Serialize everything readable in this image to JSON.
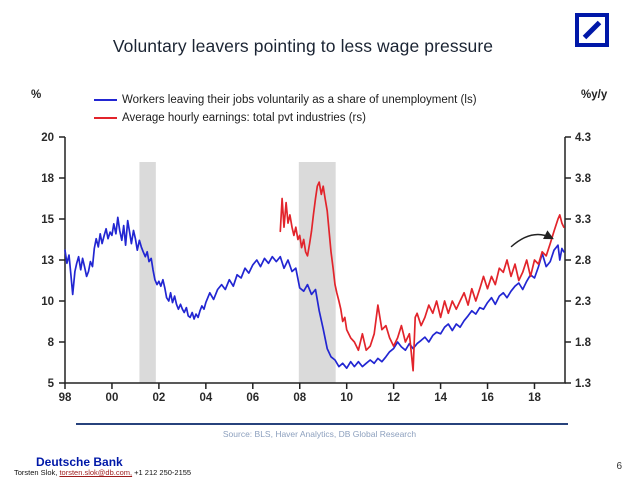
{
  "header": {
    "title": "Voluntary leavers pointing to less wage pressure",
    "logo_name": "deutsche-bank-logo",
    "logo_color": "#0018a8"
  },
  "chart_data": {
    "type": "line",
    "title": "Voluntary leavers pointing to less wage pressure",
    "grid": false,
    "legend_position": "top",
    "left_axis": {
      "unit_label": "%",
      "tick_labels": [
        "20",
        "18",
        "15",
        "13",
        "10",
        "8",
        "5"
      ],
      "tick_values": [
        20,
        17.5,
        15,
        12.5,
        10,
        7.5,
        5
      ],
      "range": [
        5,
        20
      ]
    },
    "right_axis": {
      "unit_label": "%y/y",
      "tick_labels": [
        "4.3",
        "3.8",
        "3.3",
        "2.8",
        "2.3",
        "1.8",
        "1.3"
      ],
      "tick_values": [
        4.3,
        3.8,
        3.3,
        2.8,
        2.3,
        1.8,
        1.3
      ],
      "range": [
        1.3,
        4.3
      ]
    },
    "x_axis": {
      "tick_labels": [
        "98",
        "00",
        "02",
        "04",
        "06",
        "08",
        "10",
        "12",
        "14",
        "16",
        "18"
      ],
      "tick_values": [
        1998,
        2000,
        2002,
        2004,
        2006,
        2008,
        2010,
        2012,
        2014,
        2016,
        2018
      ],
      "range": [
        1998,
        2019.3
      ]
    },
    "recession_bands": [
      {
        "start": 2001.17,
        "end": 2001.87
      },
      {
        "start": 2007.96,
        "end": 2009.53
      }
    ],
    "band_color": "#dadada",
    "axis_color": "#222222",
    "series": [
      {
        "name": "Workers leaving their jobs voluntarily as a share of unemployment (ls)",
        "axis": "left",
        "color": "#2226d2",
        "points": [
          [
            1998.0,
            13.1
          ],
          [
            1998.08,
            12.3
          ],
          [
            1998.17,
            12.8
          ],
          [
            1998.25,
            11.6
          ],
          [
            1998.33,
            10.4
          ],
          [
            1998.42,
            11.8
          ],
          [
            1998.5,
            12.3
          ],
          [
            1998.58,
            12.7
          ],
          [
            1998.67,
            11.9
          ],
          [
            1998.75,
            12.6
          ],
          [
            1998.83,
            12.1
          ],
          [
            1998.92,
            11.5
          ],
          [
            1999.0,
            11.8
          ],
          [
            1999.08,
            12.4
          ],
          [
            1999.17,
            12.1
          ],
          [
            1999.25,
            13.2
          ],
          [
            1999.33,
            13.8
          ],
          [
            1999.42,
            13.3
          ],
          [
            1999.5,
            14.1
          ],
          [
            1999.58,
            13.5
          ],
          [
            1999.67,
            14.0
          ],
          [
            1999.75,
            14.4
          ],
          [
            1999.83,
            13.8
          ],
          [
            1999.92,
            14.2
          ],
          [
            2000.0,
            14.0
          ],
          [
            2000.08,
            14.7
          ],
          [
            2000.17,
            14.1
          ],
          [
            2000.25,
            15.1
          ],
          [
            2000.33,
            14.3
          ],
          [
            2000.42,
            13.7
          ],
          [
            2000.5,
            14.6
          ],
          [
            2000.58,
            13.4
          ],
          [
            2000.67,
            14.9
          ],
          [
            2000.75,
            14.2
          ],
          [
            2000.83,
            13.5
          ],
          [
            2000.92,
            14.3
          ],
          [
            2001.0,
            13.8
          ],
          [
            2001.08,
            13.1
          ],
          [
            2001.17,
            13.7
          ],
          [
            2001.25,
            13.3
          ],
          [
            2001.33,
            13.0
          ],
          [
            2001.42,
            12.7
          ],
          [
            2001.5,
            13.0
          ],
          [
            2001.58,
            12.4
          ],
          [
            2001.67,
            12.6
          ],
          [
            2001.75,
            11.9
          ],
          [
            2001.83,
            11.3
          ],
          [
            2001.92,
            11.0
          ],
          [
            2002.0,
            11.2
          ],
          [
            2002.08,
            10.9
          ],
          [
            2002.17,
            11.3
          ],
          [
            2002.25,
            10.8
          ],
          [
            2002.33,
            10.2
          ],
          [
            2002.42,
            10.0
          ],
          [
            2002.5,
            10.5
          ],
          [
            2002.58,
            9.9
          ],
          [
            2002.67,
            10.3
          ],
          [
            2002.75,
            9.8
          ],
          [
            2002.83,
            9.5
          ],
          [
            2002.92,
            9.8
          ],
          [
            2003.0,
            9.5
          ],
          [
            2003.08,
            9.3
          ],
          [
            2003.17,
            9.6
          ],
          [
            2003.25,
            9.1
          ],
          [
            2003.33,
            9.0
          ],
          [
            2003.42,
            9.3
          ],
          [
            2003.5,
            8.9
          ],
          [
            2003.58,
            9.2
          ],
          [
            2003.67,
            9.0
          ],
          [
            2003.75,
            9.4
          ],
          [
            2003.83,
            9.7
          ],
          [
            2003.92,
            9.5
          ],
          [
            2004.0,
            9.9
          ],
          [
            2004.17,
            10.5
          ],
          [
            2004.33,
            10.1
          ],
          [
            2004.5,
            10.7
          ],
          [
            2004.67,
            11.0
          ],
          [
            2004.83,
            10.7
          ],
          [
            2005.0,
            11.3
          ],
          [
            2005.17,
            10.9
          ],
          [
            2005.33,
            11.6
          ],
          [
            2005.5,
            11.4
          ],
          [
            2005.67,
            12.0
          ],
          [
            2005.83,
            11.7
          ],
          [
            2006.0,
            12.2
          ],
          [
            2006.17,
            12.5
          ],
          [
            2006.33,
            12.1
          ],
          [
            2006.5,
            12.6
          ],
          [
            2006.67,
            12.3
          ],
          [
            2006.83,
            12.7
          ],
          [
            2007.0,
            12.4
          ],
          [
            2007.17,
            12.7
          ],
          [
            2007.33,
            12.0
          ],
          [
            2007.5,
            12.5
          ],
          [
            2007.67,
            11.8
          ],
          [
            2007.83,
            12.0
          ],
          [
            2008.0,
            10.8
          ],
          [
            2008.17,
            10.6
          ],
          [
            2008.33,
            11.0
          ],
          [
            2008.5,
            10.4
          ],
          [
            2008.67,
            10.7
          ],
          [
            2008.83,
            9.4
          ],
          [
            2009.0,
            8.3
          ],
          [
            2009.17,
            7.1
          ],
          [
            2009.33,
            6.6
          ],
          [
            2009.5,
            6.4
          ],
          [
            2009.67,
            6.0
          ],
          [
            2009.83,
            6.2
          ],
          [
            2010.0,
            5.9
          ],
          [
            2010.17,
            6.3
          ],
          [
            2010.33,
            6.0
          ],
          [
            2010.5,
            6.3
          ],
          [
            2010.67,
            6.0
          ],
          [
            2010.83,
            6.2
          ],
          [
            2011.0,
            6.4
          ],
          [
            2011.17,
            6.2
          ],
          [
            2011.33,
            6.5
          ],
          [
            2011.5,
            6.3
          ],
          [
            2011.67,
            6.6
          ],
          [
            2011.83,
            6.9
          ],
          [
            2012.0,
            7.1
          ],
          [
            2012.17,
            7.5
          ],
          [
            2012.33,
            7.2
          ],
          [
            2012.5,
            7.0
          ],
          [
            2012.67,
            7.4
          ],
          [
            2012.83,
            7.1
          ],
          [
            2013.0,
            7.4
          ],
          [
            2013.17,
            7.6
          ],
          [
            2013.33,
            7.8
          ],
          [
            2013.5,
            7.5
          ],
          [
            2013.67,
            7.9
          ],
          [
            2013.83,
            8.1
          ],
          [
            2014.0,
            8.0
          ],
          [
            2014.17,
            8.4
          ],
          [
            2014.33,
            8.6
          ],
          [
            2014.5,
            8.2
          ],
          [
            2014.67,
            8.6
          ],
          [
            2014.83,
            8.4
          ],
          [
            2015.0,
            8.8
          ],
          [
            2015.17,
            9.1
          ],
          [
            2015.33,
            9.4
          ],
          [
            2015.5,
            9.2
          ],
          [
            2015.67,
            9.6
          ],
          [
            2015.83,
            9.5
          ],
          [
            2016.0,
            9.9
          ],
          [
            2016.17,
            10.2
          ],
          [
            2016.33,
            9.8
          ],
          [
            2016.5,
            10.3
          ],
          [
            2016.67,
            10.5
          ],
          [
            2016.83,
            10.2
          ],
          [
            2017.0,
            10.6
          ],
          [
            2017.17,
            10.9
          ],
          [
            2017.33,
            11.1
          ],
          [
            2017.5,
            10.7
          ],
          [
            2017.67,
            11.2
          ],
          [
            2017.83,
            11.6
          ],
          [
            2018.0,
            11.4
          ],
          [
            2018.17,
            12.1
          ],
          [
            2018.33,
            12.9
          ],
          [
            2018.5,
            12.1
          ],
          [
            2018.67,
            12.4
          ],
          [
            2018.83,
            13.1
          ],
          [
            2019.0,
            13.4
          ],
          [
            2019.08,
            12.5
          ],
          [
            2019.17,
            13.2
          ],
          [
            2019.25,
            13.0
          ]
        ]
      },
      {
        "name": "Average hourly earnings: total pvt industries (rs)",
        "axis": "right",
        "color": "#e2242b",
        "points": [
          [
            2007.17,
            3.15
          ],
          [
            2007.25,
            3.55
          ],
          [
            2007.33,
            3.2
          ],
          [
            2007.42,
            3.5
          ],
          [
            2007.5,
            3.25
          ],
          [
            2007.58,
            3.35
          ],
          [
            2007.67,
            3.2
          ],
          [
            2007.75,
            3.1
          ],
          [
            2007.83,
            3.2
          ],
          [
            2007.92,
            3.05
          ],
          [
            2008.0,
            3.1
          ],
          [
            2008.08,
            2.95
          ],
          [
            2008.17,
            3.05
          ],
          [
            2008.25,
            2.9
          ],
          [
            2008.33,
            2.85
          ],
          [
            2008.42,
            3.0
          ],
          [
            2008.5,
            3.15
          ],
          [
            2008.58,
            3.35
          ],
          [
            2008.67,
            3.55
          ],
          [
            2008.75,
            3.7
          ],
          [
            2008.83,
            3.75
          ],
          [
            2008.92,
            3.6
          ],
          [
            2009.0,
            3.7
          ],
          [
            2009.08,
            3.55
          ],
          [
            2009.17,
            3.4
          ],
          [
            2009.25,
            3.15
          ],
          [
            2009.33,
            2.9
          ],
          [
            2009.42,
            2.7
          ],
          [
            2009.5,
            2.5
          ],
          [
            2009.58,
            2.4
          ],
          [
            2009.67,
            2.3
          ],
          [
            2009.75,
            2.2
          ],
          [
            2009.83,
            2.05
          ],
          [
            2009.92,
            2.1
          ],
          [
            2010.0,
            1.95
          ],
          [
            2010.17,
            1.85
          ],
          [
            2010.33,
            1.8
          ],
          [
            2010.5,
            1.7
          ],
          [
            2010.67,
            1.9
          ],
          [
            2010.83,
            1.7
          ],
          [
            2011.0,
            1.75
          ],
          [
            2011.17,
            1.9
          ],
          [
            2011.33,
            2.25
          ],
          [
            2011.5,
            1.95
          ],
          [
            2011.67,
            2.0
          ],
          [
            2011.83,
            1.85
          ],
          [
            2012.0,
            1.75
          ],
          [
            2012.17,
            1.85
          ],
          [
            2012.33,
            2.0
          ],
          [
            2012.5,
            1.8
          ],
          [
            2012.67,
            1.9
          ],
          [
            2012.83,
            1.45
          ],
          [
            2012.92,
            2.1
          ],
          [
            2013.0,
            2.15
          ],
          [
            2013.17,
            2.0
          ],
          [
            2013.33,
            2.1
          ],
          [
            2013.5,
            2.25
          ],
          [
            2013.67,
            2.15
          ],
          [
            2013.83,
            2.3
          ],
          [
            2014.0,
            2.1
          ],
          [
            2014.17,
            2.3
          ],
          [
            2014.33,
            2.15
          ],
          [
            2014.5,
            2.3
          ],
          [
            2014.67,
            2.2
          ],
          [
            2014.83,
            2.3
          ],
          [
            2015.0,
            2.4
          ],
          [
            2015.17,
            2.25
          ],
          [
            2015.33,
            2.45
          ],
          [
            2015.5,
            2.3
          ],
          [
            2015.67,
            2.45
          ],
          [
            2015.83,
            2.6
          ],
          [
            2016.0,
            2.45
          ],
          [
            2016.17,
            2.6
          ],
          [
            2016.33,
            2.5
          ],
          [
            2016.5,
            2.7
          ],
          [
            2016.67,
            2.65
          ],
          [
            2016.83,
            2.8
          ],
          [
            2017.0,
            2.6
          ],
          [
            2017.17,
            2.75
          ],
          [
            2017.33,
            2.55
          ],
          [
            2017.5,
            2.65
          ],
          [
            2017.67,
            2.8
          ],
          [
            2017.83,
            2.6
          ],
          [
            2018.0,
            2.8
          ],
          [
            2018.17,
            2.75
          ],
          [
            2018.33,
            2.9
          ],
          [
            2018.5,
            2.85
          ],
          [
            2018.67,
            3.0
          ],
          [
            2018.83,
            3.15
          ],
          [
            2019.0,
            3.3
          ],
          [
            2019.08,
            3.35
          ],
          [
            2019.17,
            3.25
          ],
          [
            2019.25,
            3.2
          ]
        ]
      }
    ],
    "annotation_arrow": {
      "axis": "right",
      "from": [
        2017.0,
        2.96
      ],
      "control": [
        2017.9,
        3.19
      ],
      "to": [
        2018.72,
        3.07
      ],
      "color": "#222222"
    }
  },
  "source_line": "Source: BLS,  Haver Analytics, DB Global Research",
  "footer": {
    "bank_name": "Deutsche Bank",
    "analyst": "Torsten Slok, ",
    "email": "torsten.slok@db.com,",
    "phone": " +1 212 250-2155",
    "page_number": "6"
  }
}
